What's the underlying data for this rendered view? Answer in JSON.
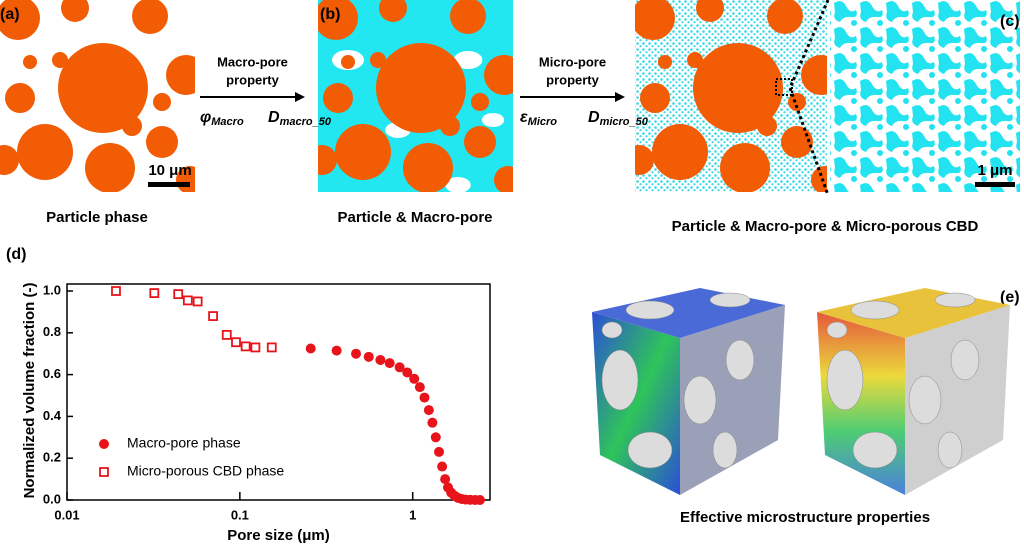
{
  "panels": {
    "a": {
      "label": "(a)",
      "scale_bar": "10 μm",
      "caption": "Particle phase"
    },
    "b": {
      "label": "(b)",
      "caption": "Particle & Macro-pore"
    },
    "c": {
      "label": "(c)",
      "scale_bar": "1 μm",
      "caption": "Particle & Macro-pore & Micro-porous CBD"
    },
    "d": {
      "label": "(d)"
    },
    "e": {
      "label": "(e)",
      "caption": "Effective microstructure properties"
    }
  },
  "arrows": [
    {
      "lines": [
        "Macro-pore",
        "property"
      ],
      "params": [
        {
          "symbol": "φ",
          "sub": "Macro"
        },
        {
          "symbol": "D",
          "sub": "macro_50"
        }
      ]
    },
    {
      "lines": [
        "Micro-pore",
        "property"
      ],
      "params": [
        {
          "symbol": "ε",
          "sub": "Micro"
        },
        {
          "symbol": "D",
          "sub": "micro_50"
        }
      ]
    }
  ],
  "chart_data": {
    "type": "scatter",
    "xlabel": "Pore size (μm)",
    "ylabel": "Normalized volume fraction (-)",
    "xscale": "log",
    "xlim": [
      0.01,
      2.8
    ],
    "xticks": [
      0.01,
      0.1,
      1
    ],
    "ylim": [
      0,
      1
    ],
    "yticks": [
      {
        "value": 0,
        "label": "0.0"
      },
      0.2,
      0.4,
      0.6,
      0.8,
      {
        "value": 1,
        "label": "1.0"
      }
    ],
    "legend": "lower left",
    "series": [
      {
        "name": "Macro-pore phase",
        "color": "#e8141b",
        "marker": "filled-circle",
        "x": [
          0.257,
          0.363,
          0.47,
          0.557,
          0.65,
          0.736,
          0.84,
          0.93,
          1.02,
          1.1,
          1.17,
          1.24,
          1.3,
          1.36,
          1.42,
          1.48,
          1.54,
          1.6,
          1.67,
          1.75,
          1.83,
          1.92,
          2.02,
          2.15,
          2.3,
          2.45
        ],
        "values": [
          0.725,
          0.715,
          0.7,
          0.685,
          0.67,
          0.655,
          0.635,
          0.61,
          0.58,
          0.54,
          0.49,
          0.43,
          0.37,
          0.3,
          0.23,
          0.16,
          0.1,
          0.06,
          0.035,
          0.02,
          0.01,
          0.005,
          0.002,
          0.001,
          0,
          0
        ]
      },
      {
        "name": "Micro-porous CBD phase",
        "color": "#e8141b",
        "marker": "open-square",
        "x": [
          0.0192,
          0.032,
          0.044,
          0.05,
          0.057,
          0.07,
          0.084,
          0.095,
          0.108,
          0.123,
          0.153
        ],
        "values": [
          1.0,
          0.99,
          0.985,
          0.955,
          0.95,
          0.88,
          0.79,
          0.755,
          0.735,
          0.73,
          0.73
        ]
      }
    ]
  }
}
